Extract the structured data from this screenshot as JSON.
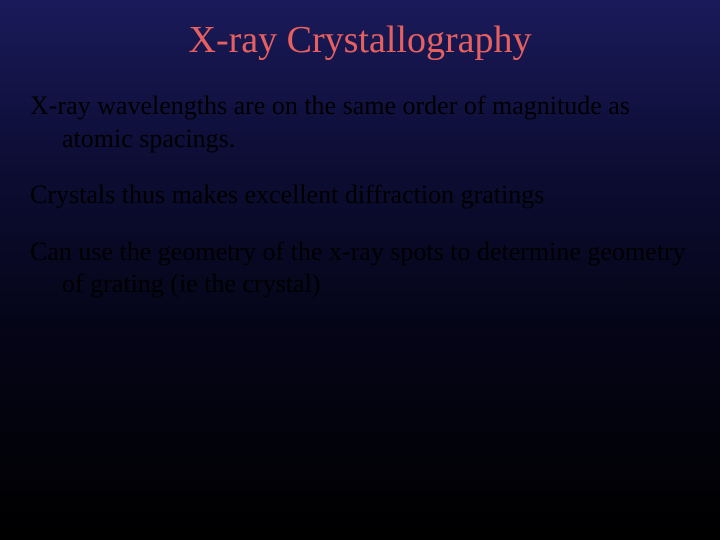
{
  "slide": {
    "title": "X-ray Crystallography",
    "paragraphs": [
      "X-ray wavelengths are on the same order of magnitude as atomic spacings.",
      "Crystals thus makes excellent diffraction gratings",
      "Can use the geometry of the x-ray spots to determine geometry of grating (ie the crystal)"
    ],
    "title_color": "#e66060",
    "body_color": "#000000",
    "title_fontsize": 38,
    "body_fontsize": 26,
    "background_gradient": [
      "#1a1a5a",
      "#0d0d35",
      "#050518",
      "#000000"
    ],
    "font_family": "Georgia, Times New Roman, serif"
  }
}
